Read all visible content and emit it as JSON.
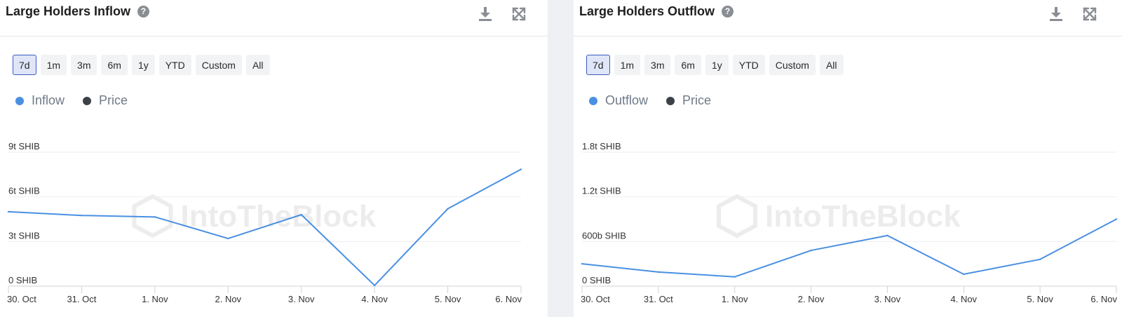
{
  "colors": {
    "series": "#4a90e2",
    "price": "#3d4147",
    "grid": "#eceef1",
    "axis": "#cfd3d8",
    "active": "#3b5bc4"
  },
  "panels": [
    {
      "title": "Large Holders Inflow",
      "help_icon": "question-circle-icon",
      "download_icon": "download-icon",
      "expand_icon": "expand-icon",
      "ranges": [
        {
          "label": "7d",
          "active": true
        },
        {
          "label": "1m"
        },
        {
          "label": "3m"
        },
        {
          "label": "6m"
        },
        {
          "label": "1y"
        },
        {
          "label": "YTD"
        },
        {
          "label": "Custom"
        },
        {
          "label": "All"
        }
      ],
      "legend": [
        {
          "label": "Inflow",
          "color": "#4a90e2"
        },
        {
          "label": "Price",
          "color": "#3d4147"
        }
      ],
      "watermark": "IntoTheBlock"
    },
    {
      "title": "Large Holders Outflow",
      "help_icon": "question-circle-icon",
      "download_icon": "download-icon",
      "expand_icon": "expand-icon",
      "ranges": [
        {
          "label": "7d",
          "active": true
        },
        {
          "label": "1m"
        },
        {
          "label": "3m"
        },
        {
          "label": "6m"
        },
        {
          "label": "1y"
        },
        {
          "label": "YTD"
        },
        {
          "label": "Custom"
        },
        {
          "label": "All"
        }
      ],
      "legend": [
        {
          "label": "Outflow",
          "color": "#4a90e2"
        },
        {
          "label": "Price",
          "color": "#3d4147"
        }
      ],
      "watermark": "IntoTheBlock"
    }
  ],
  "chart_data": [
    {
      "type": "line",
      "x": [
        "30. Oct",
        "31. Oct",
        "1. Nov",
        "2. Nov",
        "3. Nov",
        "4. Nov",
        "5. Nov",
        "6. Nov"
      ],
      "series": [
        {
          "name": "Inflow",
          "values": [
            5.0,
            4.75,
            4.65,
            3.2,
            4.8,
            0.05,
            5.2,
            7.85
          ]
        }
      ],
      "y_ticks": [
        "0 SHIB",
        "3t SHIB",
        "6t SHIB",
        "9t SHIB"
      ],
      "y_tick_values": [
        0,
        3,
        6,
        9
      ],
      "ylim": [
        0,
        9
      ],
      "grid": true
    },
    {
      "type": "line",
      "x": [
        "30. Oct",
        "31. Oct",
        "1. Nov",
        "2. Nov",
        "3. Nov",
        "4. Nov",
        "5. Nov",
        "6. Nov"
      ],
      "series": [
        {
          "name": "Outflow",
          "values": [
            0.3,
            0.19,
            0.125,
            0.48,
            0.68,
            0.16,
            0.36,
            0.9
          ]
        }
      ],
      "y_ticks": [
        "0 SHIB",
        "600b SHIB",
        "1.2t SHIB",
        "1.8t SHIB"
      ],
      "y_tick_values": [
        0,
        0.6,
        1.2,
        1.8
      ],
      "ylim": [
        0,
        1.8
      ],
      "grid": true
    }
  ]
}
